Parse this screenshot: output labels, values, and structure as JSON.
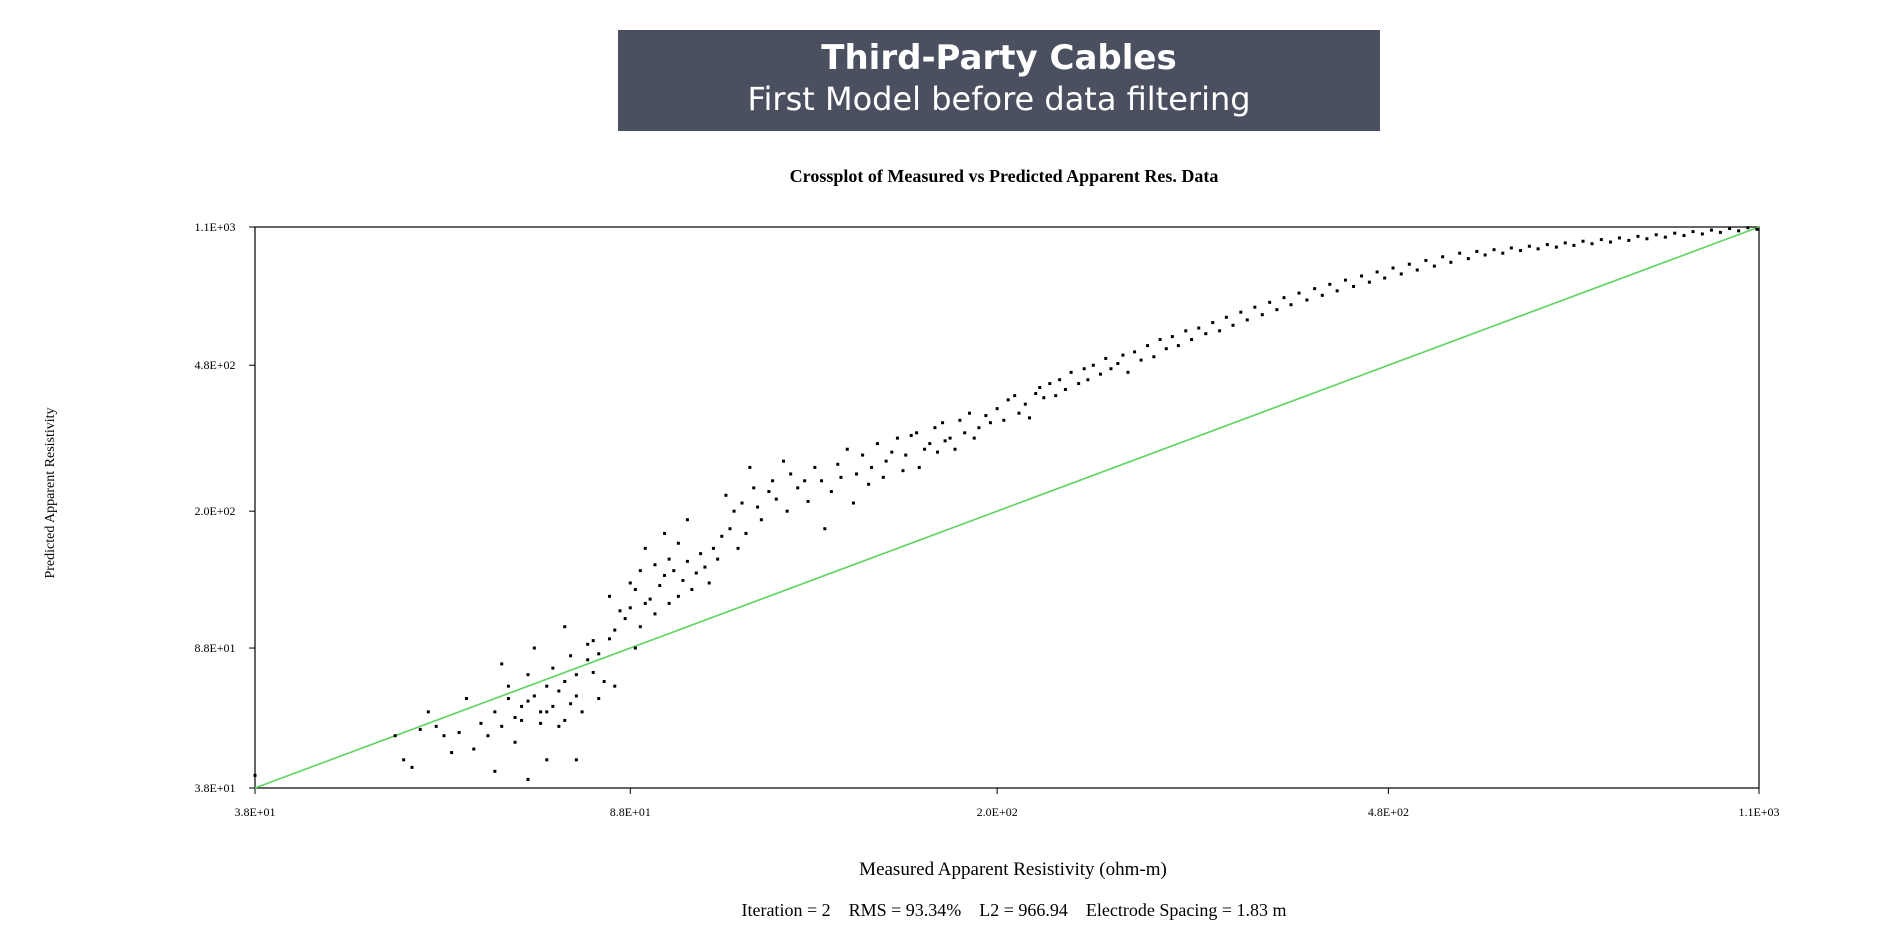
{
  "header": {
    "title": "Third-Party Cables",
    "subtitle": "First Model before data filtering"
  },
  "chart_data": {
    "type": "scatter",
    "title": "Crossplot of Measured vs Predicted Apparent Res. Data",
    "xlabel": "Measured Apparent Resistivity (ohm-m)",
    "ylabel": "Predicted Apparent Resistivity",
    "x_scale": "log",
    "y_scale": "log",
    "xlim": [
      38,
      1100
    ],
    "ylim": [
      38,
      1100
    ],
    "x_ticks": [
      "3.8E+01",
      "8.8E+01",
      "2.0E+02",
      "4.8E+02",
      "1.1E+03"
    ],
    "y_ticks": [
      "3.8E+01",
      "8.8E+01",
      "2.0E+02",
      "4.8E+02",
      "1.1E+03"
    ],
    "tick_values": [
      38,
      88,
      200,
      480,
      1100
    ],
    "reference_line": {
      "type": "y=x",
      "color": "#5fd35f"
    },
    "footer": "Iteration = 2    RMS = 93.34%    L2 = 966.94    Electrode Spacing = 1.83 m",
    "colors": {
      "points": "#000000",
      "axis": "#000000"
    },
    "points": [
      [
        38,
        41
      ],
      [
        52,
        52
      ],
      [
        53,
        45
      ],
      [
        54,
        43
      ],
      [
        55,
        54
      ],
      [
        56,
        60
      ],
      [
        57,
        55
      ],
      [
        58,
        52
      ],
      [
        59,
        47
      ],
      [
        60,
        53
      ],
      [
        61,
        65
      ],
      [
        62,
        48
      ],
      [
        63,
        56
      ],
      [
        64,
        52
      ],
      [
        65,
        42
      ],
      [
        65,
        60
      ],
      [
        66,
        55
      ],
      [
        66,
        80
      ],
      [
        67,
        65
      ],
      [
        67,
        70
      ],
      [
        68,
        50
      ],
      [
        68,
        58
      ],
      [
        69,
        57
      ],
      [
        69,
        62
      ],
      [
        70,
        40
      ],
      [
        70,
        64
      ],
      [
        70,
        75
      ],
      [
        71,
        66
      ],
      [
        71,
        88
      ],
      [
        72,
        56
      ],
      [
        72,
        60
      ],
      [
        73,
        45
      ],
      [
        73,
        60
      ],
      [
        73,
        70
      ],
      [
        74,
        62
      ],
      [
        74,
        78
      ],
      [
        75,
        55
      ],
      [
        75,
        68
      ],
      [
        76,
        57
      ],
      [
        76,
        72
      ],
      [
        76,
        100
      ],
      [
        77,
        63
      ],
      [
        77,
        84
      ],
      [
        78,
        45
      ],
      [
        78,
        66
      ],
      [
        78,
        75
      ],
      [
        79,
        60
      ],
      [
        80,
        82
      ],
      [
        80,
        90
      ],
      [
        81,
        76
      ],
      [
        81,
        92
      ],
      [
        82,
        65
      ],
      [
        82,
        85
      ],
      [
        83,
        72
      ],
      [
        84,
        93
      ],
      [
        84,
        120
      ],
      [
        85,
        70
      ],
      [
        85,
        98
      ],
      [
        86,
        110
      ],
      [
        87,
        105
      ],
      [
        88,
        112
      ],
      [
        88,
        130
      ],
      [
        89,
        88
      ],
      [
        89,
        125
      ],
      [
        90,
        100
      ],
      [
        90,
        140
      ],
      [
        91,
        115
      ],
      [
        91,
        160
      ],
      [
        92,
        118
      ],
      [
        93,
        108
      ],
      [
        93,
        145
      ],
      [
        94,
        128
      ],
      [
        95,
        136
      ],
      [
        95,
        175
      ],
      [
        96,
        115
      ],
      [
        96,
        150
      ],
      [
        97,
        140
      ],
      [
        98,
        120
      ],
      [
        98,
        165
      ],
      [
        99,
        132
      ],
      [
        100,
        148
      ],
      [
        100,
        190
      ],
      [
        101,
        125
      ],
      [
        102,
        138
      ],
      [
        103,
        155
      ],
      [
        104,
        143
      ],
      [
        105,
        130
      ],
      [
        106,
        160
      ],
      [
        107,
        150
      ],
      [
        108,
        172
      ],
      [
        109,
        220
      ],
      [
        110,
        180
      ],
      [
        111,
        200
      ],
      [
        112,
        160
      ],
      [
        113,
        210
      ],
      [
        114,
        175
      ],
      [
        115,
        260
      ],
      [
        116,
        230
      ],
      [
        117,
        205
      ],
      [
        118,
        190
      ],
      [
        120,
        225
      ],
      [
        121,
        240
      ],
      [
        122,
        215
      ],
      [
        124,
        270
      ],
      [
        125,
        200
      ],
      [
        126,
        250
      ],
      [
        128,
        230
      ],
      [
        130,
        240
      ],
      [
        131,
        212
      ],
      [
        133,
        260
      ],
      [
        135,
        240
      ],
      [
        136,
        180
      ],
      [
        138,
        225
      ],
      [
        140,
        265
      ],
      [
        141,
        245
      ],
      [
        143,
        290
      ],
      [
        145,
        210
      ],
      [
        146,
        250
      ],
      [
        148,
        280
      ],
      [
        150,
        235
      ],
      [
        151,
        260
      ],
      [
        153,
        300
      ],
      [
        155,
        245
      ],
      [
        156,
        270
      ],
      [
        158,
        285
      ],
      [
        160,
        310
      ],
      [
        162,
        255
      ],
      [
        163,
        280
      ],
      [
        165,
        315
      ],
      [
        167,
        320
      ],
      [
        168,
        260
      ],
      [
        170,
        290
      ],
      [
        172,
        300
      ],
      [
        174,
        330
      ],
      [
        175,
        285
      ],
      [
        177,
        340
      ],
      [
        178,
        305
      ],
      [
        180,
        310
      ],
      [
        182,
        290
      ],
      [
        184,
        345
      ],
      [
        186,
        320
      ],
      [
        188,
        360
      ],
      [
        190,
        310
      ],
      [
        192,
        330
      ],
      [
        195,
        355
      ],
      [
        197,
        340
      ],
      [
        200,
        370
      ],
      [
        203,
        345
      ],
      [
        205,
        390
      ],
      [
        208,
        400
      ],
      [
        210,
        360
      ],
      [
        213,
        380
      ],
      [
        215,
        350
      ],
      [
        218,
        405
      ],
      [
        220,
        420
      ],
      [
        222,
        395
      ],
      [
        225,
        430
      ],
      [
        228,
        400
      ],
      [
        230,
        440
      ],
      [
        233,
        415
      ],
      [
        236,
        460
      ],
      [
        240,
        430
      ],
      [
        243,
        470
      ],
      [
        245,
        440
      ],
      [
        248,
        480
      ],
      [
        252,
        455
      ],
      [
        255,
        500
      ],
      [
        258,
        470
      ],
      [
        262,
        485
      ],
      [
        265,
        510
      ],
      [
        268,
        460
      ],
      [
        272,
        520
      ],
      [
        276,
        495
      ],
      [
        280,
        540
      ],
      [
        284,
        505
      ],
      [
        288,
        560
      ],
      [
        292,
        530
      ],
      [
        296,
        570
      ],
      [
        300,
        540
      ],
      [
        305,
        590
      ],
      [
        309,
        560
      ],
      [
        314,
        600
      ],
      [
        319,
        580
      ],
      [
        324,
        620
      ],
      [
        329,
        590
      ],
      [
        334,
        640
      ],
      [
        339,
        610
      ],
      [
        345,
        660
      ],
      [
        350,
        630
      ],
      [
        356,
        680
      ],
      [
        362,
        650
      ],
      [
        368,
        700
      ],
      [
        374,
        670
      ],
      [
        380,
        720
      ],
      [
        386,
        690
      ],
      [
        393,
        740
      ],
      [
        400,
        710
      ],
      [
        407,
        760
      ],
      [
        414,
        730
      ],
      [
        421,
        780
      ],
      [
        428,
        750
      ],
      [
        436,
        800
      ],
      [
        444,
        770
      ],
      [
        452,
        820
      ],
      [
        460,
        790
      ],
      [
        468,
        840
      ],
      [
        476,
        810
      ],
      [
        485,
        860
      ],
      [
        494,
        830
      ],
      [
        503,
        880
      ],
      [
        512,
        850
      ],
      [
        522,
        900
      ],
      [
        532,
        870
      ],
      [
        542,
        920
      ],
      [
        552,
        890
      ],
      [
        563,
        940
      ],
      [
        574,
        910
      ],
      [
        585,
        950
      ],
      [
        596,
        930
      ],
      [
        608,
        960
      ],
      [
        620,
        940
      ],
      [
        632,
        970
      ],
      [
        645,
        955
      ],
      [
        658,
        980
      ],
      [
        671,
        965
      ],
      [
        685,
        990
      ],
      [
        699,
        975
      ],
      [
        713,
        1000
      ],
      [
        727,
        985
      ],
      [
        742,
        1010
      ],
      [
        757,
        995
      ],
      [
        773,
        1020
      ],
      [
        789,
        1005
      ],
      [
        805,
        1030
      ],
      [
        822,
        1015
      ],
      [
        839,
        1040
      ],
      [
        856,
        1025
      ],
      [
        874,
        1050
      ],
      [
        892,
        1035
      ],
      [
        911,
        1060
      ],
      [
        930,
        1045
      ],
      [
        949,
        1070
      ],
      [
        969,
        1055
      ],
      [
        989,
        1080
      ],
      [
        1009,
        1065
      ],
      [
        1030,
        1090
      ],
      [
        1051,
        1075
      ],
      [
        1073,
        1095
      ],
      [
        1095,
        1085
      ]
    ]
  }
}
